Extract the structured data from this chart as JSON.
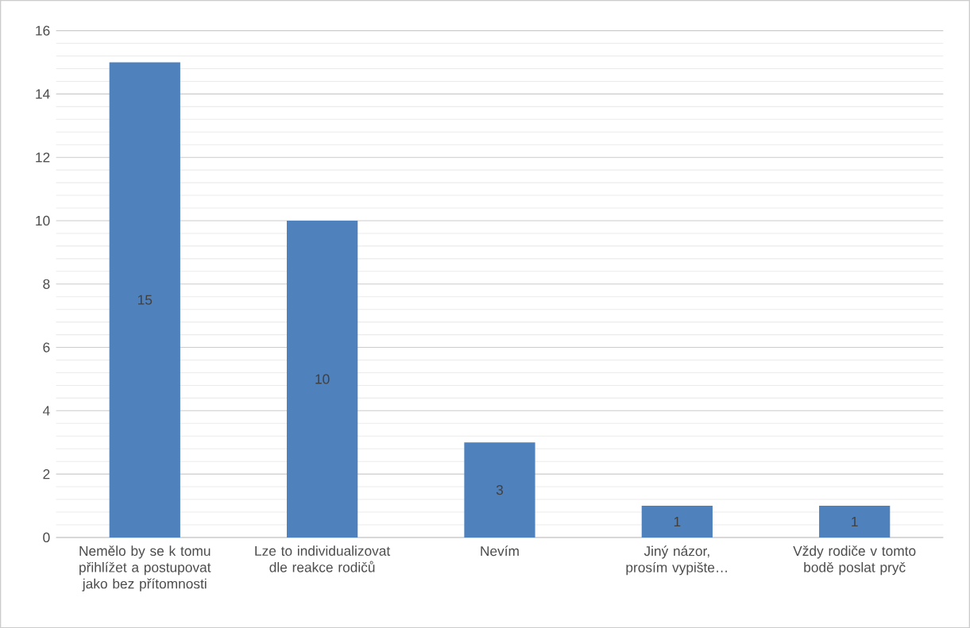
{
  "chart_data": {
    "type": "bar",
    "categories": [
      "Nemělo by se k tomu přihlížet a postupovat jako bez přítomnosti",
      "Lze to individualizovat dle reakce rodičů",
      "Nevím",
      "Jiný názor, prosím vypište…",
      "Vždy rodiče v tomto bodě poslat pryč"
    ],
    "values": [
      15,
      10,
      3,
      1,
      1
    ],
    "color": "#4f81bd",
    "ylim": [
      0,
      16
    ],
    "yticks": [
      0,
      2,
      4,
      6,
      8,
      10,
      12,
      14,
      16
    ],
    "grid": "y",
    "data_labels": true
  }
}
